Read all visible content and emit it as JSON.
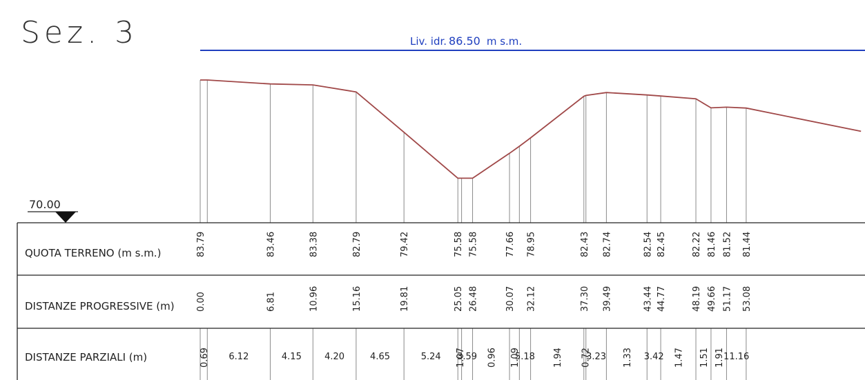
{
  "title": "Sez. 3",
  "water_level": {
    "label": "Liv. idr.",
    "value": "86.50",
    "unit": "m s.m.",
    "color": "#1f3fbf"
  },
  "datum": "70.00",
  "profile_color": "#a04848",
  "rows": {
    "elevation_label": "QUOTA TERRENO (m s.m.)",
    "progressive_label": "DISTANZE PROGRESSIVE (m)",
    "partial_label": "DISTANZE PARZIALI (m)"
  },
  "points": [
    {
      "distance": "0.00",
      "elevation": "83.79"
    },
    {
      "distance": "0.69",
      "elevation": "83.79"
    },
    {
      "distance": "6.81",
      "elevation": "83.46"
    },
    {
      "distance": "10.96",
      "elevation": "83.38"
    },
    {
      "distance": "15.16",
      "elevation": "82.79"
    },
    {
      "distance": "19.81",
      "elevation": "79.42"
    },
    {
      "distance": "25.05",
      "elevation": "75.58"
    },
    {
      "distance": "25.41",
      "elevation": "75.58"
    },
    {
      "distance": "26.48",
      "elevation": "75.58"
    },
    {
      "distance": "30.07",
      "elevation": "77.66"
    },
    {
      "distance": "31.03",
      "elevation": "78.25"
    },
    {
      "distance": "32.12",
      "elevation": "78.95"
    },
    {
      "distance": "37.30",
      "elevation": "82.43"
    },
    {
      "distance": "37.50",
      "elevation": "82.50"
    },
    {
      "distance": "39.49",
      "elevation": "82.74"
    },
    {
      "distance": "43.44",
      "elevation": "82.54"
    },
    {
      "distance": "44.77",
      "elevation": "82.45"
    },
    {
      "distance": "48.19",
      "elevation": "82.22"
    },
    {
      "distance": "49.66",
      "elevation": "81.46"
    },
    {
      "distance": "51.17",
      "elevation": "81.52"
    },
    {
      "distance": "53.08",
      "elevation": "81.44"
    },
    {
      "distance": "64.24",
      "elevation": "79.50"
    }
  ],
  "elevation_labels": [
    {
      "at": "0.00",
      "text": "83.79"
    },
    {
      "at": "6.81",
      "text": "83.46"
    },
    {
      "at": "10.96",
      "text": "83.38"
    },
    {
      "at": "15.16",
      "text": "82.79"
    },
    {
      "at": "19.81",
      "text": "79.42"
    },
    {
      "at": "25.05",
      "text": "75.58"
    },
    {
      "at": "26.48",
      "text": "75.58"
    },
    {
      "at": "30.07",
      "text": "77.66"
    },
    {
      "at": "32.12",
      "text": "78.95"
    },
    {
      "at": "37.30",
      "text": "82.43"
    },
    {
      "at": "39.49",
      "text": "82.74"
    },
    {
      "at": "43.44",
      "text": "82.54"
    },
    {
      "at": "44.77",
      "text": "82.45"
    },
    {
      "at": "48.19",
      "text": "82.22"
    },
    {
      "at": "49.66",
      "text": "81.46"
    },
    {
      "at": "51.17",
      "text": "81.52"
    },
    {
      "at": "53.08",
      "text": "81.44"
    }
  ],
  "progressive_labels": [
    {
      "at": "0.00",
      "text": "0.00"
    },
    {
      "at": "6.81",
      "text": "6.81"
    },
    {
      "at": "10.96",
      "text": "10.96"
    },
    {
      "at": "15.16",
      "text": "15.16"
    },
    {
      "at": "19.81",
      "text": "19.81"
    },
    {
      "at": "25.05",
      "text": "25.05"
    },
    {
      "at": "26.48",
      "text": "26.48"
    },
    {
      "at": "30.07",
      "text": "30.07"
    },
    {
      "at": "32.12",
      "text": "32.12"
    },
    {
      "at": "37.30",
      "text": "37.30"
    },
    {
      "at": "39.49",
      "text": "39.49"
    },
    {
      "at": "43.44",
      "text": "43.44"
    },
    {
      "at": "44.77",
      "text": "44.77"
    },
    {
      "at": "48.19",
      "text": "48.19"
    },
    {
      "at": "49.66",
      "text": "49.66"
    },
    {
      "at": "51.17",
      "text": "51.17"
    },
    {
      "at": "53.08",
      "text": "53.08"
    }
  ],
  "partial_labels": [
    {
      "text": "0.69",
      "vertical": true
    },
    {
      "text": "6.12",
      "vertical": false
    },
    {
      "text": "4.15",
      "vertical": false
    },
    {
      "text": "4.20",
      "vertical": false
    },
    {
      "text": "4.65",
      "vertical": false
    },
    {
      "text": "5.24",
      "vertical": false
    },
    {
      "text": "1.07",
      "vertical": true
    },
    {
      "text": "3.59",
      "vertical": false
    },
    {
      "text": "0.96",
      "vertical": true
    },
    {
      "text": "1.09",
      "vertical": true
    },
    {
      "text": "5.18",
      "vertical": false
    },
    {
      "text": "1.94",
      "vertical": true
    },
    {
      "text": "0.72",
      "vertical": true
    },
    {
      "text": "3.23",
      "vertical": false
    },
    {
      "text": "1.33",
      "vertical": true
    },
    {
      "text": "3.42",
      "vertical": false
    },
    {
      "text": "1.47",
      "vertical": true
    },
    {
      "text": "1.51",
      "vertical": true
    },
    {
      "text": "1.91",
      "vertical": true
    },
    {
      "text": "11.16",
      "vertical": false
    }
  ]
}
